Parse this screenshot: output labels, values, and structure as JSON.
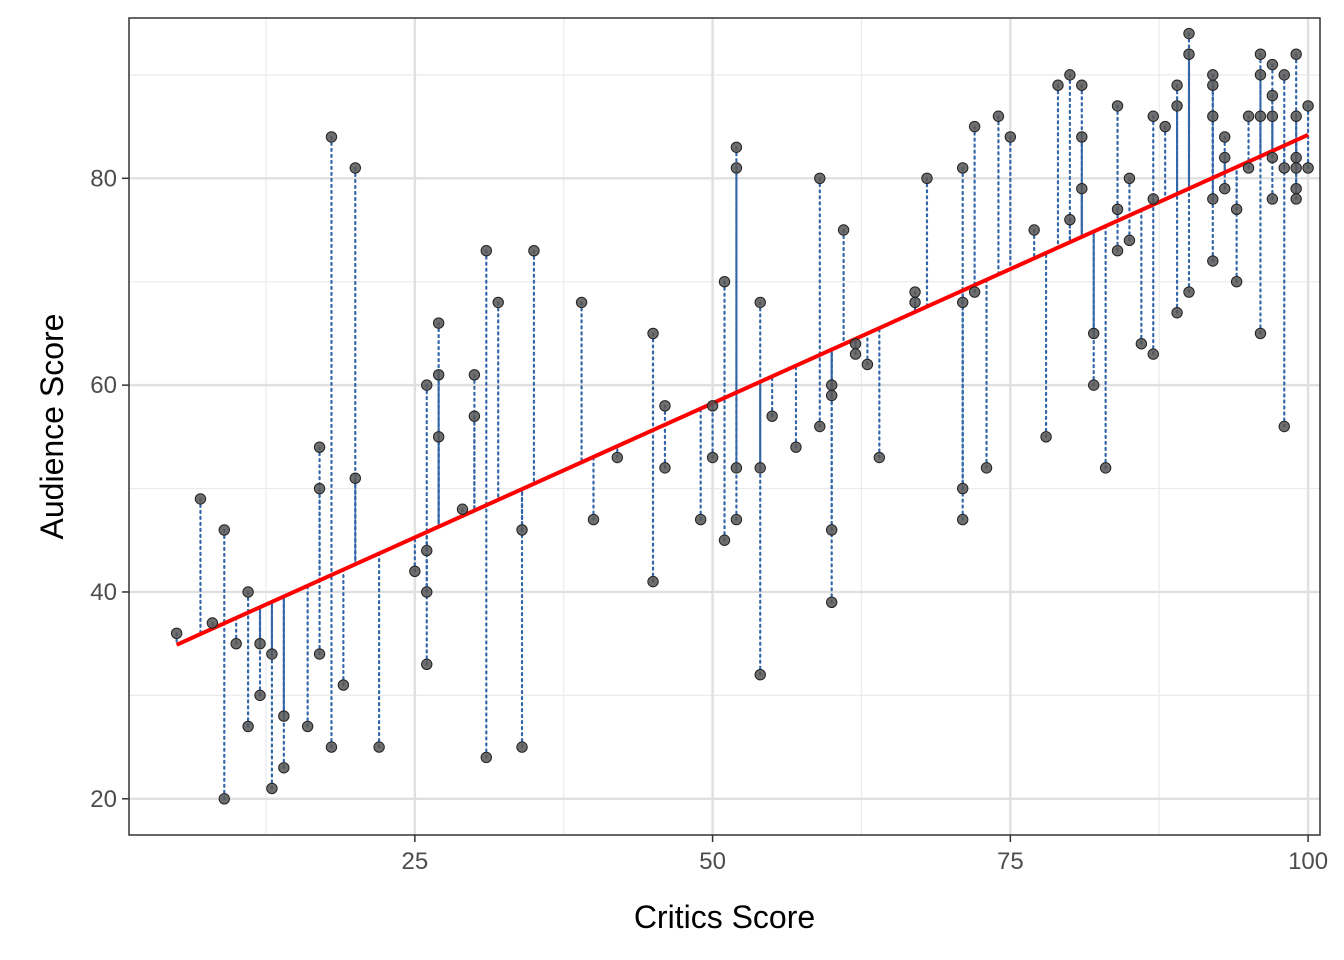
{
  "chart_data": {
    "type": "scatter",
    "title": "",
    "xlabel": "Critics Score",
    "ylabel": "Audience Score",
    "xlim": [
      1,
      101
    ],
    "ylim": [
      16.5,
      95.5
    ],
    "x_ticks_major": [
      25,
      50,
      75,
      100
    ],
    "x_ticks_minor": [
      12.5,
      37.5,
      62.5,
      87.5
    ],
    "y_ticks_major": [
      20,
      40,
      60,
      80
    ],
    "y_ticks_minor": [
      30,
      50,
      70,
      90
    ],
    "grid": true,
    "legend": "none",
    "regression_line": {
      "intercept": 32.3,
      "slope": 0.519,
      "x_range": [
        5,
        100
      ],
      "color": "#ff0000"
    },
    "residual_line_color": "#3366a8",
    "point_color": "#555555",
    "points": [
      [
        5,
        36
      ],
      [
        7,
        49
      ],
      [
        8,
        37
      ],
      [
        9,
        46
      ],
      [
        9,
        20
      ],
      [
        10,
        35
      ],
      [
        11,
        40
      ],
      [
        11,
        27
      ],
      [
        12,
        35
      ],
      [
        12,
        30
      ],
      [
        13,
        34
      ],
      [
        13,
        21
      ],
      [
        14,
        28
      ],
      [
        14,
        23
      ],
      [
        16,
        27
      ],
      [
        17,
        54
      ],
      [
        17,
        50
      ],
      [
        17,
        34
      ],
      [
        18,
        84
      ],
      [
        18,
        25
      ],
      [
        19,
        31
      ],
      [
        20,
        81
      ],
      [
        20,
        51
      ],
      [
        22,
        25
      ],
      [
        25,
        42
      ],
      [
        26,
        60
      ],
      [
        26,
        44
      ],
      [
        26,
        40
      ],
      [
        26,
        33
      ],
      [
        27,
        66
      ],
      [
        27,
        61
      ],
      [
        27,
        55
      ],
      [
        29,
        48
      ],
      [
        30,
        61
      ],
      [
        30,
        57
      ],
      [
        31,
        73
      ],
      [
        31,
        24
      ],
      [
        32,
        68
      ],
      [
        34,
        46
      ],
      [
        34,
        25
      ],
      [
        35,
        73
      ],
      [
        39,
        68
      ],
      [
        40,
        47
      ],
      [
        42,
        53
      ],
      [
        45,
        65
      ],
      [
        45,
        41
      ],
      [
        46,
        58
      ],
      [
        46,
        52
      ],
      [
        49,
        47
      ],
      [
        50,
        58
      ],
      [
        50,
        53
      ],
      [
        51,
        70
      ],
      [
        51,
        45
      ],
      [
        52,
        83
      ],
      [
        52,
        81
      ],
      [
        52,
        52
      ],
      [
        52,
        47
      ],
      [
        54,
        68
      ],
      [
        54,
        52
      ],
      [
        54,
        32
      ],
      [
        55,
        57
      ],
      [
        57,
        54
      ],
      [
        59,
        80
      ],
      [
        59,
        56
      ],
      [
        60,
        60
      ],
      [
        60,
        59
      ],
      [
        60,
        46
      ],
      [
        60,
        39
      ],
      [
        61,
        75
      ],
      [
        62,
        64
      ],
      [
        62,
        63
      ],
      [
        63,
        62
      ],
      [
        64,
        53
      ],
      [
        67,
        69
      ],
      [
        67,
        68
      ],
      [
        68,
        80
      ],
      [
        71,
        81
      ],
      [
        71,
        68
      ],
      [
        71,
        50
      ],
      [
        71,
        47
      ],
      [
        72,
        85
      ],
      [
        72,
        69
      ],
      [
        73,
        52
      ],
      [
        74,
        86
      ],
      [
        75,
        84
      ],
      [
        77,
        75
      ],
      [
        78,
        55
      ],
      [
        79,
        89
      ],
      [
        80,
        90
      ],
      [
        80,
        76
      ],
      [
        81,
        89
      ],
      [
        81,
        84
      ],
      [
        81,
        79
      ],
      [
        82,
        65
      ],
      [
        82,
        60
      ],
      [
        83,
        52
      ],
      [
        84,
        87
      ],
      [
        84,
        77
      ],
      [
        84,
        73
      ],
      [
        85,
        80
      ],
      [
        85,
        74
      ],
      [
        86,
        64
      ],
      [
        87,
        86
      ],
      [
        87,
        78
      ],
      [
        87,
        63
      ],
      [
        88,
        85
      ],
      [
        89,
        89
      ],
      [
        89,
        87
      ],
      [
        89,
        67
      ],
      [
        90,
        94
      ],
      [
        90,
        92
      ],
      [
        90,
        69
      ],
      [
        92,
        90
      ],
      [
        92,
        89
      ],
      [
        92,
        86
      ],
      [
        92,
        78
      ],
      [
        92,
        72
      ],
      [
        93,
        84
      ],
      [
        93,
        82
      ],
      [
        93,
        79
      ],
      [
        94,
        77
      ],
      [
        94,
        70
      ],
      [
        95,
        86
      ],
      [
        95,
        81
      ],
      [
        96,
        92
      ],
      [
        96,
        90
      ],
      [
        96,
        86
      ],
      [
        96,
        65
      ],
      [
        97,
        91
      ],
      [
        97,
        88
      ],
      [
        97,
        86
      ],
      [
        97,
        82
      ],
      [
        97,
        78
      ],
      [
        98,
        90
      ],
      [
        98,
        81
      ],
      [
        98,
        56
      ],
      [
        99,
        92
      ],
      [
        99,
        86
      ],
      [
        99,
        82
      ],
      [
        99,
        81
      ],
      [
        99,
        79
      ],
      [
        99,
        78
      ],
      [
        100,
        87
      ],
      [
        100,
        81
      ]
    ]
  }
}
